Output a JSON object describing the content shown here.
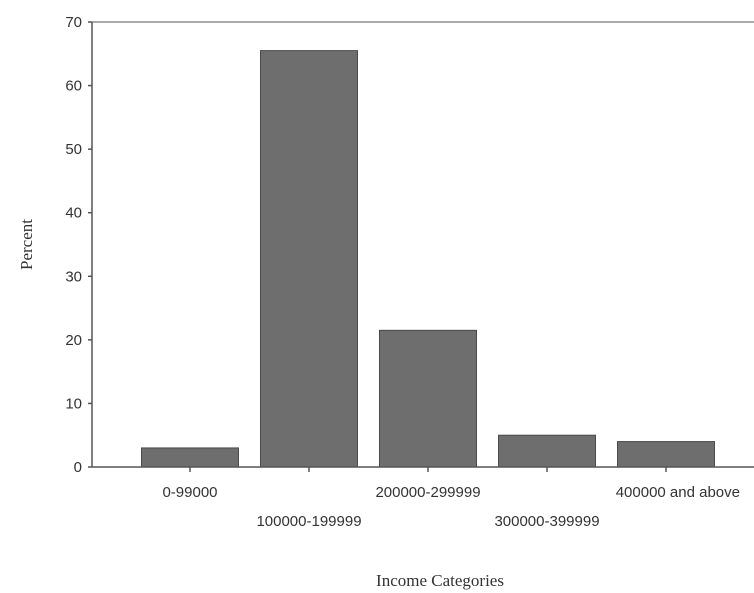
{
  "chart_data": {
    "type": "bar",
    "title": "",
    "xlabel": "Income Categories",
    "ylabel": "Percent",
    "categories": [
      "0-99000",
      "100000-199999",
      "200000-299999",
      "300000-399999",
      "400000 and above"
    ],
    "values": [
      3,
      65.5,
      21.5,
      5,
      4
    ],
    "ylim": [
      0,
      70
    ],
    "yticks": [
      0,
      10,
      20,
      30,
      40,
      50,
      60,
      70
    ],
    "grid": false,
    "legend": "none",
    "bar_color": "#6e6e6e",
    "axis_color": "#555555"
  }
}
